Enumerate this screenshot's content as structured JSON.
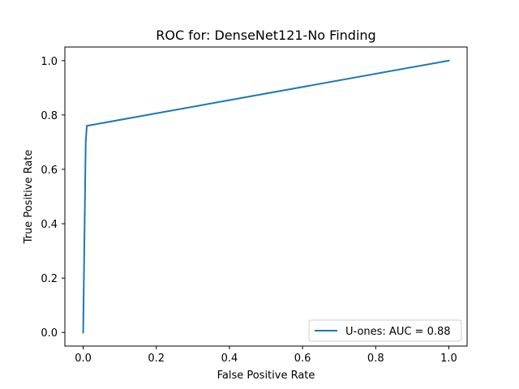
{
  "chart_data": {
    "type": "line",
    "title": "ROC for: DenseNet121-No Finding",
    "xlabel": "False Positive Rate",
    "ylabel": "True Positive Rate",
    "xlim": [
      -0.05,
      1.05
    ],
    "ylim": [
      -0.05,
      1.05
    ],
    "xticks": [
      0.0,
      0.2,
      0.4,
      0.6,
      0.8,
      1.0
    ],
    "yticks": [
      0.0,
      0.2,
      0.4,
      0.6,
      0.8,
      1.0
    ],
    "xtick_labels": [
      "0.0",
      "0.2",
      "0.4",
      "0.6",
      "0.8",
      "1.0"
    ],
    "ytick_labels": [
      "0.0",
      "0.2",
      "0.4",
      "0.6",
      "0.8",
      "1.0"
    ],
    "grid": false,
    "legend_position": "lower-right",
    "series": [
      {
        "name": "U-ones: AUC = 0.88",
        "color": "#1f77b4",
        "x": [
          0.0,
          0.007,
          0.01,
          1.0
        ],
        "y": [
          0.0,
          0.7,
          0.76,
          1.0
        ]
      }
    ]
  }
}
